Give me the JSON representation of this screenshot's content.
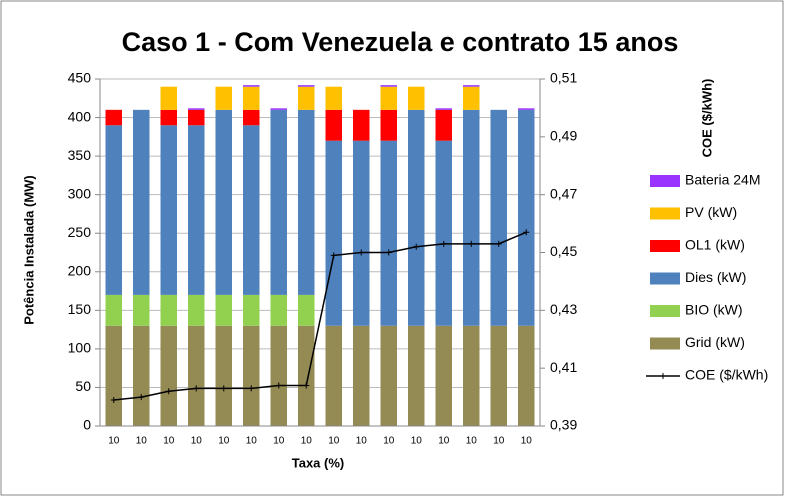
{
  "chart_data": {
    "type": "bar",
    "title": "Caso 1 - Com Venezuela e contrato 15 anos",
    "xlabel": "Taxa (%)",
    "ylabel": "Potência Instalada (MW)",
    "y2label": "COE ($/kWh)",
    "categories": [
      "10",
      "10",
      "10",
      "10",
      "10",
      "10",
      "10",
      "10",
      "10",
      "10",
      "10",
      "10",
      "10",
      "10",
      "10",
      "10"
    ],
    "stacked": true,
    "series": [
      {
        "name": "Grid (kW)",
        "color": "#948A54",
        "values": [
          130,
          130,
          130,
          130,
          130,
          130,
          130,
          130,
          130,
          130,
          130,
          130,
          130,
          130,
          130,
          130
        ]
      },
      {
        "name": "BIO (kW)",
        "color": "#92D050",
        "values": [
          40,
          40,
          40,
          40,
          40,
          40,
          40,
          40,
          0,
          0,
          0,
          0,
          0,
          0,
          0,
          0
        ]
      },
      {
        "name": "Dies (kW)",
        "color": "#4F81BD",
        "values": [
          220,
          240,
          220,
          220,
          240,
          220,
          240,
          240,
          240,
          240,
          240,
          280,
          240,
          280,
          280,
          280
        ]
      },
      {
        "name": "OL1 (kW)",
        "color": "#FF0000",
        "values": [
          20,
          0,
          20,
          20,
          0,
          20,
          0,
          0,
          40,
          40,
          40,
          0,
          40,
          0,
          0,
          0
        ]
      },
      {
        "name": "PV (kW)",
        "color": "#FFC000",
        "values": [
          0,
          0,
          30,
          0,
          30,
          30,
          0,
          30,
          30,
          0,
          30,
          30,
          0,
          30,
          0,
          0
        ]
      },
      {
        "name": "Bateria 24M",
        "color": "#9933FF",
        "values": [
          0,
          0,
          0,
          2,
          0,
          2,
          2,
          2,
          0,
          0,
          2,
          0,
          2,
          2,
          0,
          2
        ]
      },
      {
        "name": "COE ($/kWh)",
        "color": "#000000",
        "type": "line",
        "axis": "y2",
        "values": [
          0.399,
          0.4,
          0.402,
          0.403,
          0.403,
          0.403,
          0.404,
          0.404,
          0.449,
          0.45,
          0.45,
          0.452,
          0.453,
          0.453,
          0.453,
          0.457
        ]
      }
    ],
    "ylim": [
      0,
      450
    ],
    "yticks": [
      0,
      50,
      100,
      150,
      200,
      250,
      300,
      350,
      400,
      450
    ],
    "y2lim": [
      0.39,
      0.51
    ],
    "y2ticks": [
      {
        "value": 0.39,
        "label": "0,39"
      },
      {
        "value": 0.41,
        "label": "0,41"
      },
      {
        "value": 0.43,
        "label": "0,43"
      },
      {
        "value": 0.45,
        "label": "0,45"
      },
      {
        "value": 0.47,
        "label": "0,47"
      },
      {
        "value": 0.49,
        "label": "0,49"
      },
      {
        "value": 0.51,
        "label": "0,51"
      }
    ],
    "grid": true,
    "legend": "right"
  }
}
